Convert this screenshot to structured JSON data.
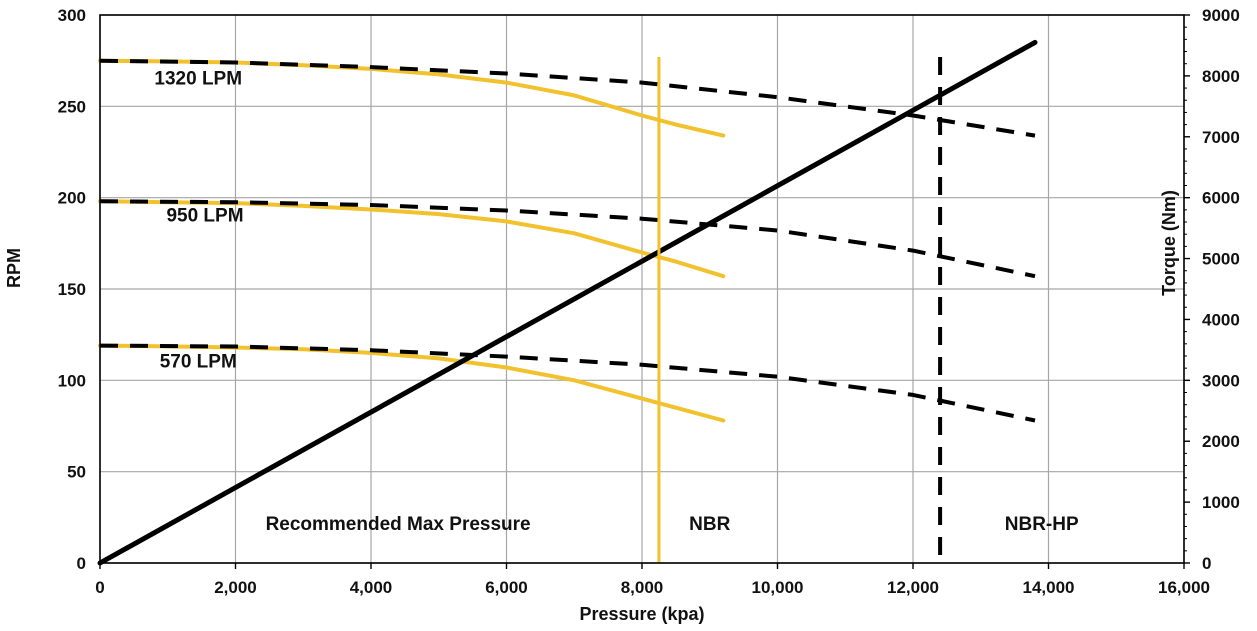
{
  "chart_data": {
    "type": "line",
    "x_axis": {
      "label": "Pressure (kpa)",
      "range": [
        0,
        16000
      ],
      "ticks": [
        0,
        2000,
        4000,
        6000,
        8000,
        10000,
        12000,
        14000,
        16000
      ],
      "tick_labels": [
        "0",
        "2,000",
        "4,000",
        "6,000",
        "8,000",
        "10,000",
        "12,000",
        "14,000",
        "16,000"
      ]
    },
    "y_axis_left": {
      "label": "RPM",
      "range": [
        0,
        300
      ],
      "ticks": [
        0,
        50,
        100,
        150,
        200,
        250,
        300
      ],
      "tick_labels": [
        "0",
        "50",
        "100",
        "150",
        "200",
        "250",
        "300"
      ]
    },
    "y_axis_right": {
      "label": "Torque (Nm)",
      "range": [
        0,
        9000
      ],
      "ticks": [
        0,
        1000,
        2000,
        3000,
        4000,
        5000,
        6000,
        7000,
        8000,
        9000
      ],
      "tick_labels": [
        "0",
        "1000",
        "2000",
        "3000",
        "4000",
        "5000",
        "6000",
        "7000",
        "8000",
        "9000"
      ]
    },
    "grid": true,
    "colors": {
      "yellow": "#f2c12e",
      "black": "#000000",
      "grid": "#a6a6a6"
    },
    "series": [
      {
        "axis": "left",
        "style": "solid",
        "color": "#f2c12e",
        "x": [
          0,
          1000,
          2000,
          3000,
          4000,
          5000,
          6000,
          7000,
          8000,
          8500,
          9200
        ],
        "y": [
          275,
          274.6,
          274,
          272.5,
          270.5,
          267.5,
          263,
          256,
          245,
          240,
          234
        ]
      },
      {
        "axis": "left",
        "style": "dashed",
        "color": "#000000",
        "x": [
          0,
          2000,
          4000,
          6000,
          8000,
          10000,
          12000,
          13800
        ],
        "y": [
          275,
          274,
          271.5,
          268,
          263,
          255,
          245,
          234
        ]
      },
      {
        "axis": "left",
        "style": "solid",
        "color": "#f2c12e",
        "x": [
          0,
          1000,
          2000,
          3000,
          4000,
          5000,
          6000,
          7000,
          8000,
          8500,
          9200
        ],
        "y": [
          198,
          197.5,
          197,
          195.5,
          193.5,
          191,
          187,
          180.5,
          170,
          165,
          157
        ]
      },
      {
        "axis": "left",
        "style": "dashed",
        "color": "#000000",
        "x": [
          0,
          2000,
          4000,
          6000,
          8000,
          10000,
          12000,
          13800
        ],
        "y": [
          198,
          197.5,
          196,
          193,
          188.5,
          182,
          171,
          157
        ]
      },
      {
        "axis": "left",
        "style": "solid",
        "color": "#f2c12e",
        "x": [
          0,
          1000,
          2000,
          3000,
          4000,
          5000,
          6000,
          7000,
          8000,
          8500,
          9200
        ],
        "y": [
          119,
          118.6,
          118,
          117,
          115,
          112,
          107,
          100,
          90,
          85,
          78
        ]
      },
      {
        "axis": "left",
        "style": "dashed",
        "color": "#000000",
        "x": [
          0,
          2000,
          4000,
          6000,
          8000,
          10000,
          12000,
          13800
        ],
        "y": [
          119,
          118.5,
          116.5,
          113,
          108.5,
          102,
          92,
          78
        ]
      },
      {
        "axis": "right",
        "style": "solid",
        "color": "#000000",
        "width": "thick",
        "x": [
          0,
          13800
        ],
        "y": [
          0,
          8550
        ]
      }
    ],
    "series_labels": [
      {
        "text": "1320 LPM",
        "x": 1450,
        "y": 262
      },
      {
        "text": "950 LPM",
        "x": 1550,
        "y": 187
      },
      {
        "text": "570 LPM",
        "x": 1450,
        "y": 107
      }
    ],
    "vertical_lines": [
      {
        "x": 8250,
        "color": "#f2c12e",
        "style": "solid",
        "y_top": 277
      },
      {
        "x": 12400,
        "color": "#000000",
        "style": "dashed",
        "y_top": 277
      }
    ],
    "annotations": [
      {
        "text": "Recommended Max Pressure",
        "x": 4400,
        "y": 18
      },
      {
        "text": "NBR",
        "x": 9000,
        "y": 18
      },
      {
        "text": "NBR-HP",
        "x": 13900,
        "y": 18
      }
    ]
  }
}
